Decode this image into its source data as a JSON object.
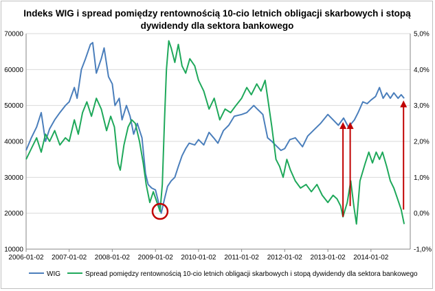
{
  "chart_data": {
    "type": "line",
    "title_line1": "Indeks WIG i spread pomiędzy rentownością 10-cio letnich obligacji skarbowych i stopą",
    "title_line2": "dywidendy dla sektora bankowego",
    "x_ticks": [
      "2006-01-02",
      "2007-01-02",
      "2008-01-02",
      "2009-01-02",
      "2010-01-02",
      "2011-01-02",
      "2012-01-02",
      "2013-01-02",
      "2014-01-02"
    ],
    "y_left": {
      "min": 10000,
      "max": 70000,
      "step": 10000,
      "ticks": [
        "10000",
        "20000",
        "30000",
        "40000",
        "50000",
        "60000",
        "70000"
      ]
    },
    "y_right": {
      "min": -1.0,
      "max": 5.0,
      "step": 1.0,
      "ticks": [
        "-1,0%",
        "0,0%",
        "1,0%",
        "2,0%",
        "3,0%",
        "4,0%",
        "5,0%"
      ]
    },
    "grid": true,
    "legend_position": "bottom",
    "series": [
      {
        "name": "WIG",
        "axis": "left",
        "color": "#4a7ebb",
        "points": [
          [
            "2006-01-02",
            37500
          ],
          [
            "2006-02-15",
            41000
          ],
          [
            "2006-04-01",
            44000
          ],
          [
            "2006-05-10",
            48000
          ],
          [
            "2006-06-15",
            40000
          ],
          [
            "2006-07-20",
            43500
          ],
          [
            "2006-09-01",
            46000
          ],
          [
            "2006-10-15",
            48000
          ],
          [
            "2006-12-01",
            50000
          ],
          [
            "2007-01-02",
            51000
          ],
          [
            "2007-02-15",
            55000
          ],
          [
            "2007-03-10",
            52000
          ],
          [
            "2007-04-15",
            60000
          ],
          [
            "2007-05-20",
            63000
          ],
          [
            "2007-07-01",
            67000
          ],
          [
            "2007-07-20",
            67500
          ],
          [
            "2007-08-20",
            59000
          ],
          [
            "2007-10-01",
            63000
          ],
          [
            "2007-10-25",
            66000
          ],
          [
            "2007-12-01",
            58000
          ],
          [
            "2008-01-02",
            56000
          ],
          [
            "2008-01-25",
            50000
          ],
          [
            "2008-03-01",
            52000
          ],
          [
            "2008-03-25",
            46000
          ],
          [
            "2008-05-01",
            50000
          ],
          [
            "2008-06-01",
            47000
          ],
          [
            "2008-07-01",
            42000
          ],
          [
            "2008-08-01",
            45000
          ],
          [
            "2008-09-10",
            41000
          ],
          [
            "2008-10-10",
            31000
          ],
          [
            "2008-11-01",
            28000
          ],
          [
            "2008-12-01",
            27000
          ],
          [
            "2009-01-02",
            26500
          ],
          [
            "2009-02-01",
            22500
          ],
          [
            "2009-02-20",
            20000
          ],
          [
            "2009-03-20",
            24000
          ],
          [
            "2009-04-15",
            27500
          ],
          [
            "2009-05-15",
            29000
          ],
          [
            "2009-06-15",
            30000
          ],
          [
            "2009-07-15",
            33000
          ],
          [
            "2009-08-15",
            36000
          ],
          [
            "2009-09-15",
            38000
          ],
          [
            "2009-10-15",
            39500
          ],
          [
            "2009-12-01",
            39000
          ],
          [
            "2010-01-02",
            40500
          ],
          [
            "2010-02-15",
            39000
          ],
          [
            "2010-04-01",
            42500
          ],
          [
            "2010-05-10",
            41000
          ],
          [
            "2010-06-15",
            39500
          ],
          [
            "2010-08-01",
            43000
          ],
          [
            "2010-09-15",
            44500
          ],
          [
            "2010-11-01",
            47000
          ],
          [
            "2011-01-02",
            47500
          ],
          [
            "2011-02-15",
            48000
          ],
          [
            "2011-04-15",
            50000
          ],
          [
            "2011-05-15",
            49000
          ],
          [
            "2011-07-01",
            47500
          ],
          [
            "2011-08-10",
            41000
          ],
          [
            "2011-09-15",
            40000
          ],
          [
            "2011-10-15",
            39000
          ],
          [
            "2011-12-01",
            37500
          ],
          [
            "2012-01-02",
            38000
          ],
          [
            "2012-02-15",
            40500
          ],
          [
            "2012-04-01",
            41000
          ],
          [
            "2012-06-01",
            38500
          ],
          [
            "2012-07-15",
            41500
          ],
          [
            "2012-09-15",
            43500
          ],
          [
            "2012-11-01",
            45000
          ],
          [
            "2013-01-02",
            47500
          ],
          [
            "2013-02-15",
            46000
          ],
          [
            "2013-04-01",
            44500
          ],
          [
            "2013-05-15",
            46500
          ],
          [
            "2013-06-25",
            44000
          ],
          [
            "2013-08-15",
            46000
          ],
          [
            "2013-09-15",
            48000
          ],
          [
            "2013-10-25",
            51000
          ],
          [
            "2013-12-01",
            50500
          ],
          [
            "2014-01-02",
            51500
          ],
          [
            "2014-02-10",
            52500
          ],
          [
            "2014-03-15",
            55000
          ],
          [
            "2014-04-15",
            52000
          ],
          [
            "2014-05-15",
            53500
          ],
          [
            "2014-06-15",
            52000
          ],
          [
            "2014-07-15",
            53500
          ],
          [
            "2014-08-20",
            52000
          ],
          [
            "2014-09-15",
            53000
          ],
          [
            "2014-10-10",
            52000
          ]
        ]
      },
      {
        "name": "Spread pomiędzy rentownością 10-cio letnich obligacji skarbowych i stopą dywidendy dla sektora bankowego",
        "axis": "right",
        "color": "#1ea85a",
        "points": [
          [
            "2006-01-02",
            1.5
          ],
          [
            "2006-02-15",
            1.8
          ],
          [
            "2006-04-01",
            2.1
          ],
          [
            "2006-05-10",
            1.7
          ],
          [
            "2006-06-15",
            2.2
          ],
          [
            "2006-07-20",
            2.0
          ],
          [
            "2006-09-01",
            2.3
          ],
          [
            "2006-10-15",
            1.9
          ],
          [
            "2006-12-01",
            2.1
          ],
          [
            "2007-01-02",
            2.0
          ],
          [
            "2007-02-15",
            2.6
          ],
          [
            "2007-03-20",
            2.2
          ],
          [
            "2007-04-25",
            2.8
          ],
          [
            "2007-06-01",
            3.1
          ],
          [
            "2007-07-10",
            2.7
          ],
          [
            "2007-08-20",
            3.2
          ],
          [
            "2007-10-01",
            2.9
          ],
          [
            "2007-11-15",
            2.3
          ],
          [
            "2007-12-20",
            2.7
          ],
          [
            "2008-01-20",
            2.4
          ],
          [
            "2008-02-20",
            1.4
          ],
          [
            "2008-03-10",
            1.2
          ],
          [
            "2008-04-10",
            1.9
          ],
          [
            "2008-05-15",
            2.4
          ],
          [
            "2008-06-15",
            2.6
          ],
          [
            "2008-07-15",
            2.5
          ],
          [
            "2008-08-20",
            2.0
          ],
          [
            "2008-09-20",
            1.4
          ],
          [
            "2008-10-15",
            0.8
          ],
          [
            "2008-11-15",
            0.3
          ],
          [
            "2008-12-15",
            0.6
          ],
          [
            "2009-01-15",
            0.3
          ],
          [
            "2009-02-10",
            0.05
          ],
          [
            "2009-03-01",
            0.8
          ],
          [
            "2009-03-20",
            2.6
          ],
          [
            "2009-04-05",
            4.0
          ],
          [
            "2009-04-25",
            4.8
          ],
          [
            "2009-05-15",
            4.6
          ],
          [
            "2009-06-15",
            4.2
          ],
          [
            "2009-07-15",
            4.7
          ],
          [
            "2009-08-15",
            4.1
          ],
          [
            "2009-09-15",
            3.9
          ],
          [
            "2009-10-20",
            4.3
          ],
          [
            "2009-12-01",
            4.1
          ],
          [
            "2010-01-02",
            3.7
          ],
          [
            "2010-02-15",
            3.4
          ],
          [
            "2010-04-01",
            2.9
          ],
          [
            "2010-05-15",
            3.2
          ],
          [
            "2010-07-01",
            2.6
          ],
          [
            "2010-08-15",
            2.9
          ],
          [
            "2010-10-01",
            2.8
          ],
          [
            "2010-11-15",
            3.0
          ],
          [
            "2011-01-02",
            3.2
          ],
          [
            "2011-02-15",
            3.5
          ],
          [
            "2011-03-25",
            3.3
          ],
          [
            "2011-05-10",
            3.6
          ],
          [
            "2011-06-15",
            3.4
          ],
          [
            "2011-07-20",
            3.7
          ],
          [
            "2011-08-20",
            3.0
          ],
          [
            "2011-09-15",
            2.4
          ],
          [
            "2011-10-20",
            1.5
          ],
          [
            "2011-11-20",
            1.3
          ],
          [
            "2011-12-20",
            1.0
          ],
          [
            "2012-01-20",
            1.5
          ],
          [
            "2012-02-20",
            1.2
          ],
          [
            "2012-04-01",
            0.9
          ],
          [
            "2012-05-15",
            0.7
          ],
          [
            "2012-07-01",
            0.8
          ],
          [
            "2012-08-15",
            0.6
          ],
          [
            "2012-10-01",
            0.8
          ],
          [
            "2012-11-15",
            0.5
          ],
          [
            "2013-01-02",
            0.3
          ],
          [
            "2013-02-15",
            0.5
          ],
          [
            "2013-03-20",
            0.4
          ],
          [
            "2013-04-20",
            0.2
          ],
          [
            "2013-05-10",
            -0.1
          ],
          [
            "2013-06-15",
            0.3
          ],
          [
            "2013-07-15",
            0.9
          ],
          [
            "2013-08-10",
            0.2
          ],
          [
            "2013-09-01",
            -0.3
          ],
          [
            "2013-10-01",
            0.9
          ],
          [
            "2013-11-15",
            1.4
          ],
          [
            "2013-12-15",
            1.7
          ],
          [
            "2014-01-15",
            1.4
          ],
          [
            "2014-02-15",
            1.7
          ],
          [
            "2014-03-15",
            1.5
          ],
          [
            "2014-04-10",
            1.7
          ],
          [
            "2014-05-15",
            1.3
          ],
          [
            "2014-06-15",
            0.9
          ],
          [
            "2014-07-15",
            0.7
          ],
          [
            "2014-08-15",
            0.4
          ],
          [
            "2014-09-15",
            0.1
          ],
          [
            "2014-10-10",
            -0.3
          ]
        ]
      }
    ],
    "annotations": [
      {
        "type": "arrow",
        "color": "#c00000",
        "from": [
          "2013-05-10",
          -0.1
        ],
        "to": [
          "2013-05-10",
          2.5
        ]
      },
      {
        "type": "arrow",
        "color": "#c00000",
        "from": [
          "2013-07-10",
          0.2
        ],
        "to": [
          "2013-07-10",
          2.5
        ]
      },
      {
        "type": "arrow",
        "color": "#c00000",
        "from": [
          "2014-10-05",
          0.1
        ],
        "to": [
          "2014-10-05",
          3.1
        ]
      },
      {
        "type": "circle",
        "color": "#c00000",
        "at": [
          "2009-02-10",
          0.05
        ]
      }
    ]
  }
}
